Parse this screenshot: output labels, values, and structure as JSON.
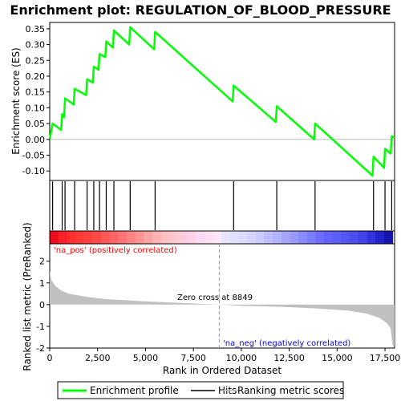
{
  "chart_data": {
    "type": "line",
    "title": "Enrichment plot: REGULATION_OF_BLOOD_PRESSURE",
    "top_panel": {
      "ylabel": "Enrichment score (ES)",
      "ylim": [
        -0.13,
        0.37
      ],
      "yticks": [
        -0.1,
        -0.05,
        0.0,
        0.05,
        0.1,
        0.15,
        0.2,
        0.25,
        0.3,
        0.35
      ],
      "ytick_labels": [
        "-0.10",
        "-0.05",
        "0.00",
        "0.05",
        "0.10",
        "0.15",
        "0.20",
        "0.25",
        "0.30",
        "0.35"
      ],
      "series": [
        {
          "name": "Enrichment profile",
          "color": "#00ff00",
          "x": [
            0,
            150,
            600,
            650,
            750,
            800,
            1250,
            1300,
            1900,
            1950,
            2250,
            2300,
            2550,
            2600,
            2900,
            2950,
            3300,
            3350,
            4150,
            4200,
            5450,
            5500,
            9550,
            9600,
            11800,
            11850,
            13800,
            13850,
            16850,
            16900,
            17450,
            17500,
            17800,
            17850,
            18000
          ],
          "y": [
            0.0,
            0.05,
            0.03,
            0.08,
            0.07,
            0.13,
            0.11,
            0.16,
            0.14,
            0.19,
            0.18,
            0.23,
            0.22,
            0.27,
            0.26,
            0.31,
            0.29,
            0.345,
            0.3,
            0.355,
            0.285,
            0.34,
            0.12,
            0.17,
            0.055,
            0.105,
            0.0,
            0.05,
            -0.115,
            -0.055,
            -0.09,
            -0.03,
            -0.045,
            0.01,
            0.005
          ]
        }
      ]
    },
    "hits": {
      "name": "Hits",
      "color": "#000000",
      "x": [
        150,
        650,
        800,
        1300,
        1950,
        2300,
        2600,
        2950,
        3350,
        4200,
        5500,
        9600,
        11850,
        13850,
        16900,
        17500,
        17850
      ]
    },
    "bottom_panel": {
      "ylabel": "Ranked list metric (PreRanked)",
      "xlabel": "Rank in Ordered Dataset",
      "xlim": [
        0,
        18000
      ],
      "ylim": [
        -2.0,
        2.8
      ],
      "xticks": [
        0,
        2500,
        5000,
        7500,
        10000,
        12500,
        15000,
        17500
      ],
      "xtick_labels": [
        "0",
        "2,500",
        "5,000",
        "7,500",
        "10,000",
        "12,500",
        "15,000",
        "17,500"
      ],
      "yticks": [
        -2,
        -1,
        0,
        1,
        2
      ],
      "ytick_labels": [
        "-2",
        "-1",
        "0",
        "1",
        "2"
      ],
      "ranking_metric": {
        "name": "Ranking metric scores",
        "color": "#c0c0c0",
        "x": [
          0,
          100,
          300,
          600,
          1000,
          2000,
          3000,
          5000,
          7000,
          8849,
          10000,
          12000,
          14000,
          15500,
          16500,
          17200,
          17600,
          17800,
          17900,
          18000
        ],
        "y": [
          1.55,
          1.1,
          0.85,
          0.65,
          0.5,
          0.35,
          0.25,
          0.15,
          0.07,
          0.0,
          -0.05,
          -0.1,
          -0.18,
          -0.27,
          -0.4,
          -0.6,
          -0.85,
          -1.1,
          -1.9,
          -1.9
        ]
      },
      "annotations": {
        "pos_label": "'na_pos' (positively correlated)",
        "neg_label": "'na_neg' (negatively correlated)",
        "zero_cross": "Zero cross at 8849",
        "zero_cross_x": 8849
      }
    },
    "legend": {
      "placement": "bottom",
      "entries": [
        "Enrichment profile",
        "Hits",
        "Ranking metric scores"
      ]
    },
    "colors": {
      "profile": "#00ff00",
      "pos_label": "#ff0000",
      "neg_label": "#0000ff",
      "heat_pos": "#ff0000",
      "heat_neg": "#0000ff"
    }
  }
}
